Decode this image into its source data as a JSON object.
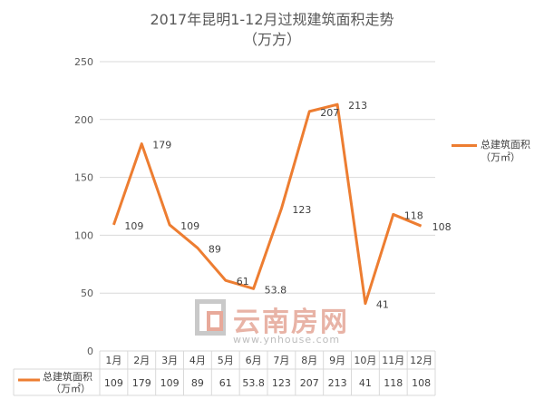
{
  "chart_data": {
    "type": "line",
    "title": "2017年昆明1-12月过规建筑面积走势",
    "subtitle": "（万方）",
    "categories": [
      "1月",
      "2月",
      "3月",
      "4月",
      "5月",
      "6月",
      "7月",
      "8月",
      "9月",
      "10月",
      "11月",
      "12月"
    ],
    "series": [
      {
        "name": "总建筑面积",
        "unit": "（万㎡）",
        "values": [
          109,
          179,
          109,
          89,
          61,
          53.8,
          123,
          207,
          213,
          41,
          118,
          108
        ]
      }
    ],
    "data_labels": [
      "109",
      "179",
      "109",
      "89",
      "61",
      "53.8",
      "123",
      "207",
      "213",
      "41",
      "118",
      "108"
    ],
    "y_ticks": [
      "0",
      "50",
      "100",
      "150",
      "200",
      "250"
    ],
    "ylim": [
      0,
      250
    ],
    "grid": true,
    "legend": "right",
    "data_table": true,
    "colors": {
      "series": "#ED7D31",
      "grid": "#D9D9D9"
    }
  },
  "watermark": {
    "logo_text": "云南房网",
    "url": "www.ynhouse.com",
    "icon": "ynhouse-logo-icon"
  }
}
